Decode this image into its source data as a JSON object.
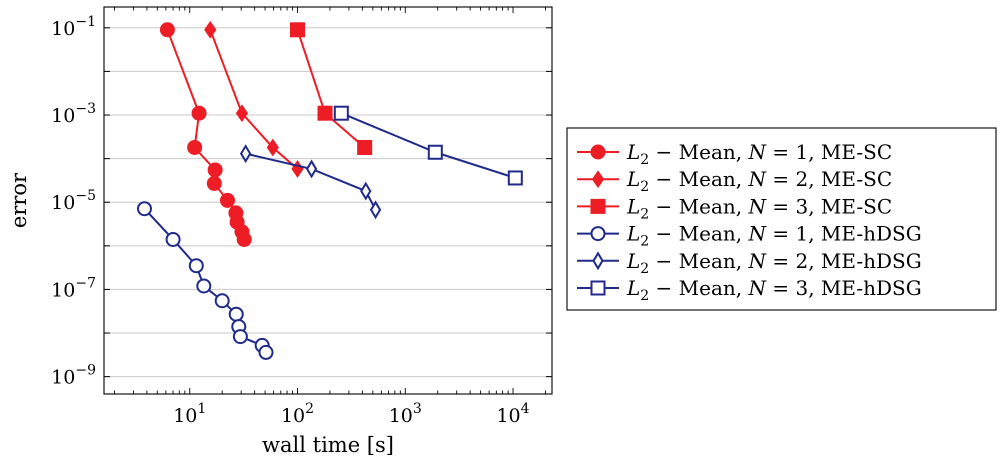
{
  "chart_data": {
    "type": "scatter",
    "title": "",
    "xlabel": "wall time [s]",
    "ylabel": "error",
    "xscale": "log",
    "yscale": "log",
    "xlim": [
      1.6,
      23000
    ],
    "ylim": [
      4e-10,
      0.3
    ],
    "xticks": [
      {
        "value": 10,
        "base": "10",
        "exp": "1"
      },
      {
        "value": 100,
        "base": "10",
        "exp": "2"
      },
      {
        "value": 1000,
        "base": "10",
        "exp": "3"
      },
      {
        "value": 10000,
        "base": "10",
        "exp": "4"
      }
    ],
    "yticks": [
      {
        "value": 0.1,
        "base": "10",
        "exp": "−1"
      },
      {
        "value": 0.001,
        "base": "10",
        "exp": "−3"
      },
      {
        "value": 1e-05,
        "base": "10",
        "exp": "−5"
      },
      {
        "value": 1e-07,
        "base": "10",
        "exp": "−7"
      },
      {
        "value": 1e-09,
        "base": "10",
        "exp": "−9"
      }
    ],
    "grid": "major-y",
    "legend_position": "outside-right",
    "colors": {
      "red": "#ee1c25",
      "blue": "#1f2a8a"
    },
    "series": [
      {
        "name": "L2 − Mean,  N = 1,  ME-SC",
        "color": "#ee1c25",
        "marker": "circle",
        "filled": true,
        "x": [
          6.2,
          12.2,
          11.1,
          17.2,
          16.9,
          22.4,
          26.8,
          27.5,
          30.5,
          32.0
        ],
        "y": [
          0.09,
          0.0011,
          0.00018,
          5.5e-05,
          2.7e-05,
          1.1e-05,
          5.7e-06,
          3.5e-06,
          2.1e-06,
          1.4e-06
        ]
      },
      {
        "name": "L2 − Mean,  N = 2,  ME-SC",
        "color": "#ee1c25",
        "marker": "diamond",
        "filled": true,
        "x": [
          15.5,
          30.5,
          59.0,
          100
        ],
        "y": [
          0.09,
          0.0011,
          0.00018,
          5.8e-05
        ]
      },
      {
        "name": "L2 − Mean,  N = 3,  ME-SC",
        "color": "#ee1c25",
        "marker": "square",
        "filled": true,
        "x": [
          100,
          180,
          420
        ],
        "y": [
          0.09,
          0.0011,
          0.00018
        ]
      },
      {
        "name": "L2 − Mean,  N = 1, ME-hDSG",
        "color": "#1f2a8a",
        "marker": "circle",
        "filled": false,
        "x": [
          3.8,
          7.0,
          11.5,
          13.5,
          20.0,
          27.0,
          28.5,
          29.5,
          47.0,
          51.0
        ],
        "y": [
          7.1e-06,
          1.4e-06,
          3.5e-07,
          1.2e-07,
          5.5e-08,
          2.7e-08,
          1.4e-08,
          8.3e-09,
          5.2e-09,
          3.6e-09
        ]
      },
      {
        "name": "L2 − Mean,  N = 2, ME-hDSG",
        "color": "#1f2a8a",
        "marker": "diamond",
        "filled": false,
        "x": [
          33.0,
          135,
          430,
          530
        ],
        "y": [
          0.00013,
          5.8e-05,
          1.8e-05,
          6.7e-06
        ]
      },
      {
        "name": "L2 − Mean,  N = 3, ME-hDSG",
        "color": "#1f2a8a",
        "marker": "square",
        "filled": false,
        "x": [
          255,
          1900,
          10500
        ],
        "y": [
          0.0011,
          0.00014,
          3.6e-05
        ]
      }
    ],
    "legend": [
      {
        "italic_var": "L",
        "sub": "2",
        "mid": " − Mean,  ",
        "n_var": "N",
        "n_val": " = 1,  ME-SC"
      },
      {
        "italic_var": "L",
        "sub": "2",
        "mid": " − Mean,  ",
        "n_var": "N",
        "n_val": " = 2,  ME-SC"
      },
      {
        "italic_var": "L",
        "sub": "2",
        "mid": " − Mean,  ",
        "n_var": "N",
        "n_val": " = 3,  ME-SC"
      },
      {
        "italic_var": "L",
        "sub": "2",
        "mid": " − Mean,  ",
        "n_var": "N",
        "n_val": " = 1, ME-hDSG"
      },
      {
        "italic_var": "L",
        "sub": "2",
        "mid": " − Mean,  ",
        "n_var": "N",
        "n_val": " = 2, ME-hDSG"
      },
      {
        "italic_var": "L",
        "sub": "2",
        "mid": " − Mean,  ",
        "n_var": "N",
        "n_val": " = 3, ME-hDSG"
      }
    ]
  }
}
